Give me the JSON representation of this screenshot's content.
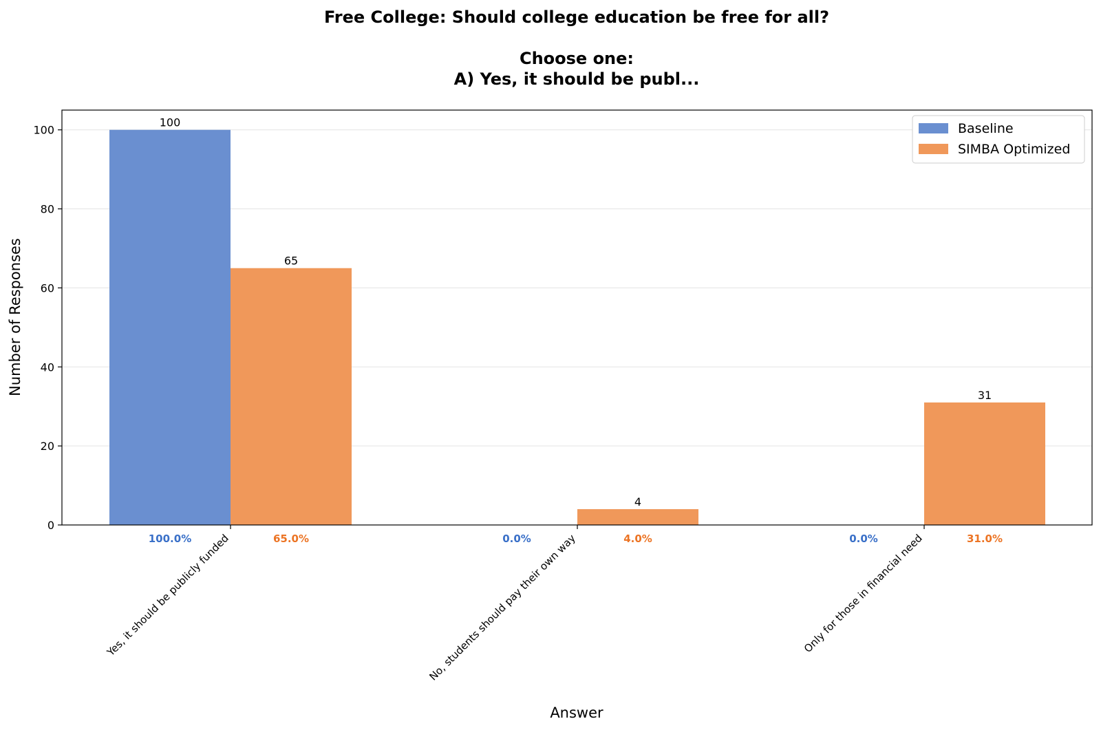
{
  "chart_data": {
    "type": "bar",
    "title_lines": [
      "Free College: Should college education be free for all?",
      "",
      "Choose one:",
      "A) Yes, it should be publ..."
    ],
    "xlabel": "Answer",
    "ylabel": "Number of Responses",
    "ylim": [
      0,
      105
    ],
    "yticks": [
      0,
      20,
      40,
      60,
      80,
      100
    ],
    "grid": "y",
    "legend_position": "top-right",
    "categories": [
      "Yes, it should be publicly funded",
      "No, students should pay their own way",
      "Only for those in financial need"
    ],
    "series": [
      {
        "name": "Baseline",
        "color": "#6a8fd0",
        "label_color": "#3a70c8",
        "values": [
          100,
          0,
          0
        ],
        "value_labels": [
          "100",
          "",
          ""
        ],
        "percent_labels": [
          "100.0%",
          "0.0%",
          "0.0%"
        ]
      },
      {
        "name": "SIMBA Optimized",
        "color": "#f0985a",
        "label_color": "#ec7424",
        "values": [
          65,
          4,
          31
        ],
        "value_labels": [
          "65",
          "4",
          "31"
        ],
        "percent_labels": [
          "65.0%",
          "4.0%",
          "31.0%"
        ]
      }
    ]
  }
}
